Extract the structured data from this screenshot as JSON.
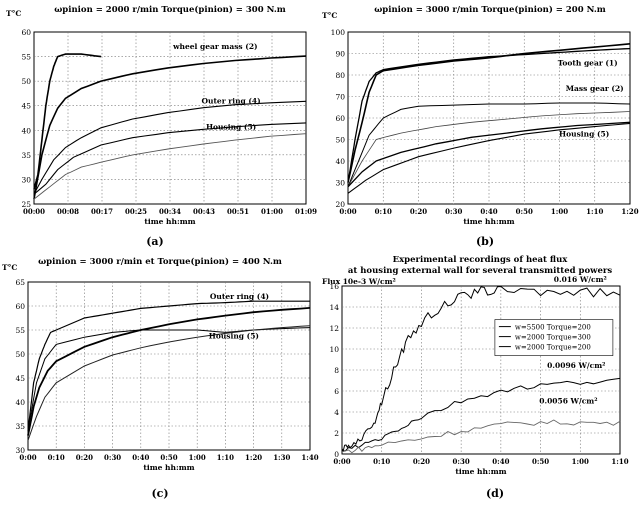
{
  "chart_data": [
    {
      "id": "a",
      "type": "line",
      "panel_label": "(a)",
      "title": "ωpinion = 2000 r/min  Torque(pinion) = 300 N.m",
      "ylabel": "T°C",
      "xlabel": "time hh:mm",
      "x_ticks": [
        "00:00",
        "00:08",
        "00:17",
        "00:25",
        "00:34",
        "00:43",
        "00:51",
        "01:00",
        "01:09"
      ],
      "x_range": [
        0,
        69
      ],
      "y_ticks": [
        25,
        30,
        35,
        40,
        45,
        50,
        55,
        60
      ],
      "ylim": [
        25,
        60
      ],
      "grid": true,
      "annotations": [
        {
          "text": "wheel gear mass (2)",
          "x": 46,
          "y": 56.5
        },
        {
          "text": "Outer ring (4)",
          "x": 50,
          "y": 45.5
        },
        {
          "text": "Housing (5)",
          "x": 50,
          "y": 40.2
        }
      ],
      "series": [
        {
          "points": [
            [
              0,
              28
            ],
            [
              1,
              31
            ],
            [
              2,
              38
            ],
            [
              3,
              45
            ],
            [
              4,
              50
            ],
            [
              5,
              53
            ],
            [
              6,
              55
            ],
            [
              8,
              55.5
            ],
            [
              12,
              55.5
            ],
            [
              17,
              55
            ]
          ],
          "color": "#000",
          "width": 1.6
        },
        {
          "points": [
            [
              0,
              26
            ],
            [
              2,
              35
            ],
            [
              4,
              41
            ],
            [
              6,
              44.5
            ],
            [
              8,
              46.5
            ],
            [
              12,
              48.5
            ],
            [
              17,
              50
            ],
            [
              25,
              51.5
            ],
            [
              34,
              52.7
            ],
            [
              43,
              53.6
            ],
            [
              51,
              54.2
            ],
            [
              60,
              54.7
            ],
            [
              69,
              55.1
            ]
          ],
          "color": "#000",
          "width": 1.6
        },
        {
          "points": [
            [
              0,
              27
            ],
            [
              2,
              30
            ],
            [
              5,
              34
            ],
            [
              8,
              36.5
            ],
            [
              12,
              38.5
            ],
            [
              17,
              40.5
            ],
            [
              25,
              42.3
            ],
            [
              34,
              43.6
            ],
            [
              43,
              44.6
            ],
            [
              51,
              45.2
            ],
            [
              60,
              45.6
            ],
            [
              69,
              45.9
            ]
          ],
          "color": "#000",
          "width": 1.1
        },
        {
          "points": [
            [
              0,
              27
            ],
            [
              3,
              29
            ],
            [
              6,
              32
            ],
            [
              10,
              34.5
            ],
            [
              17,
              37
            ],
            [
              25,
              38.5
            ],
            [
              34,
              39.5
            ],
            [
              43,
              40.2
            ],
            [
              51,
              40.7
            ],
            [
              60,
              41.2
            ],
            [
              69,
              41.5
            ]
          ],
          "color": "#000",
          "width": 1.1
        },
        {
          "points": [
            [
              0,
              26
            ],
            [
              4,
              28.5
            ],
            [
              8,
              31
            ],
            [
              12,
              32.5
            ],
            [
              17,
              33.5
            ],
            [
              25,
              35
            ],
            [
              34,
              36.2
            ],
            [
              43,
              37.2
            ],
            [
              51,
              38
            ],
            [
              60,
              38.8
            ],
            [
              69,
              39.3
            ]
          ],
          "color": "#555",
          "width": 0.9
        }
      ]
    },
    {
      "id": "b",
      "type": "line",
      "panel_label": "(b)",
      "title": "ωpinion = 3000 r/min  Torque(pinion) = 200 N.m",
      "ylabel": "T°C",
      "xlabel": "time hh:mm",
      "x_ticks": [
        "0:00",
        "0:10",
        "0:20",
        "0:30",
        "0:40",
        "0:50",
        "1:00",
        "1:10",
        "1:20"
      ],
      "x_range": [
        0,
        80
      ],
      "y_ticks": [
        20,
        30,
        40,
        50,
        60,
        70,
        80,
        90,
        100
      ],
      "ylim": [
        20,
        100
      ],
      "grid": true,
      "annotations": [
        {
          "text": "Tooth gear (1)",
          "x": 68,
          "y": 84.5
        },
        {
          "text": "Mass gear (2)",
          "x": 70,
          "y": 72.5
        },
        {
          "text": "Housing (5)",
          "x": 67,
          "y": 51.5
        }
      ],
      "series": [
        {
          "points": [
            [
              0,
              30
            ],
            [
              2,
              50
            ],
            [
              4,
              68
            ],
            [
              6,
              77
            ],
            [
              8,
              81
            ],
            [
              10,
              82.5
            ],
            [
              20,
              85
            ],
            [
              30,
              87
            ],
            [
              40,
              88.5
            ],
            [
              50,
              89.5
            ],
            [
              60,
              90.5
            ],
            [
              70,
              91.5
            ],
            [
              80,
              92.3
            ]
          ],
          "color": "#000",
          "width": 1.3
        },
        {
          "points": [
            [
              0,
              30
            ],
            [
              2,
              45
            ],
            [
              4,
              58
            ],
            [
              6,
              72
            ],
            [
              8,
              80
            ],
            [
              10,
              82
            ],
            [
              20,
              84.5
            ],
            [
              30,
              86.5
            ],
            [
              40,
              88
            ],
            [
              50,
              90
            ],
            [
              60,
              91.5
            ],
            [
              70,
              93
            ],
            [
              80,
              94.5
            ]
          ],
          "color": "#000",
          "width": 1.6
        },
        {
          "points": [
            [
              0,
              28
            ],
            [
              3,
              40
            ],
            [
              6,
              52
            ],
            [
              10,
              60
            ],
            [
              15,
              64
            ],
            [
              20,
              65.5
            ],
            [
              30,
              66
            ],
            [
              40,
              66.5
            ],
            [
              50,
              66.5
            ],
            [
              60,
              67
            ],
            [
              70,
              67
            ],
            [
              80,
              66.5
            ]
          ],
          "color": "#000",
          "width": 1.0
        },
        {
          "points": [
            [
              0,
              28
            ],
            [
              4,
              40
            ],
            [
              8,
              50
            ],
            [
              15,
              53
            ],
            [
              25,
              56
            ],
            [
              35,
              58
            ],
            [
              45,
              59.5
            ],
            [
              55,
              61
            ],
            [
              65,
              62
            ],
            [
              80,
              63
            ]
          ],
          "color": "#444",
          "width": 0.8
        },
        {
          "points": [
            [
              0,
              28
            ],
            [
              4,
              35
            ],
            [
              8,
              40
            ],
            [
              15,
              44
            ],
            [
              25,
              48
            ],
            [
              35,
              51
            ],
            [
              45,
              53
            ],
            [
              55,
              55
            ],
            [
              65,
              56.5
            ],
            [
              80,
              58
            ]
          ],
          "color": "#000",
          "width": 1.3
        },
        {
          "points": [
            [
              0,
              25
            ],
            [
              5,
              31
            ],
            [
              10,
              36
            ],
            [
              20,
              42
            ],
            [
              30,
              46
            ],
            [
              40,
              49.5
            ],
            [
              50,
              52.5
            ],
            [
              60,
              54.5
            ],
            [
              70,
              56
            ],
            [
              80,
              57.5
            ]
          ],
          "color": "#000",
          "width": 1.1
        }
      ]
    },
    {
      "id": "c",
      "type": "line",
      "panel_label": "(c)",
      "title": "ωpinion = 3000 r/min et Torque(pinion) = 400 N.m",
      "ylabel": "T°C",
      "xlabel": "time hh:mm",
      "x_ticks": [
        "0:00",
        "0:10",
        "0:20",
        "0:30",
        "0:40",
        "0:50",
        "1:00",
        "1:10",
        "1:20",
        "1:30",
        "1:40"
      ],
      "x_range": [
        0,
        100
      ],
      "y_ticks": [
        30,
        35,
        40,
        45,
        50,
        55,
        60,
        65
      ],
      "ylim": [
        30,
        65
      ],
      "grid": true,
      "annotations": [
        {
          "text": "Outer ring (4)",
          "x": 75,
          "y": 61.5
        },
        {
          "text": "Housing (5)",
          "x": 73,
          "y": 53.2
        }
      ],
      "series": [
        {
          "points": [
            [
              0,
              34
            ],
            [
              2,
              44
            ],
            [
              4,
              49
            ],
            [
              6,
              52
            ],
            [
              8,
              54.5
            ],
            [
              10,
              55
            ],
            [
              20,
              57.5
            ],
            [
              30,
              58.5
            ],
            [
              40,
              59.5
            ],
            [
              50,
              60
            ],
            [
              60,
              60.5
            ],
            [
              70,
              60.7
            ],
            [
              80,
              61
            ],
            [
              90,
              61
            ],
            [
              100,
              61
            ]
          ],
          "color": "#000",
          "width": 1.2
        },
        {
          "points": [
            [
              0,
              34
            ],
            [
              3,
              44
            ],
            [
              6,
              49
            ],
            [
              10,
              52
            ],
            [
              20,
              53.5
            ],
            [
              30,
              54.5
            ],
            [
              40,
              55
            ],
            [
              50,
              55
            ],
            [
              60,
              55
            ],
            [
              70,
              54.5
            ],
            [
              80,
              55
            ],
            [
              90,
              55.3
            ],
            [
              100,
              55.5
            ]
          ],
          "color": "#000",
          "width": 1.0
        },
        {
          "points": [
            [
              0,
              33
            ],
            [
              2,
              39
            ],
            [
              4,
              43
            ],
            [
              7,
              46.5
            ],
            [
              10,
              48.5
            ],
            [
              20,
              51.5
            ],
            [
              30,
              53.5
            ],
            [
              40,
              55
            ],
            [
              50,
              56.2
            ],
            [
              60,
              57.2
            ],
            [
              70,
              58
            ],
            [
              80,
              58.7
            ],
            [
              90,
              59.2
            ],
            [
              100,
              59.6
            ]
          ],
          "color": "#000",
          "width": 1.8
        },
        {
          "points": [
            [
              0,
              32
            ],
            [
              3,
              37
            ],
            [
              6,
              41
            ],
            [
              10,
              44
            ],
            [
              20,
              47.5
            ],
            [
              30,
              49.8
            ],
            [
              40,
              51.3
            ],
            [
              50,
              52.5
            ],
            [
              60,
              53.5
            ],
            [
              70,
              54.3
            ],
            [
              80,
              55
            ],
            [
              90,
              55.5
            ],
            [
              100,
              55.9
            ]
          ],
          "color": "#222",
          "width": 1.0
        }
      ]
    },
    {
      "id": "d",
      "type": "line",
      "panel_label": "(d)",
      "title": "Experimental recordings of heat flux",
      "subtitle": "at housing external wall for several transmitted powers",
      "ylabel": "Flux 10e-3 W/cm²",
      "xlabel": "time hh:mm",
      "x_ticks": [
        "0:00",
        "0:10",
        "0:20",
        "0:30",
        "0:40",
        "0:50",
        "1:00",
        "1:10"
      ],
      "x_range": [
        0,
        70
      ],
      "y_ticks": [
        0,
        2,
        4,
        6,
        8,
        10,
        12,
        14,
        16
      ],
      "ylim": [
        0,
        16
      ],
      "grid": true,
      "legend": {
        "placement": "center-right",
        "entries": [
          "w=5500 Torque=200",
          "w=2000 Torque=300",
          "w=2000 Torque=200"
        ]
      },
      "annotations": [
        {
          "text": "0.016 W/cm²",
          "x": 60,
          "y": 16.4
        },
        {
          "text": "0.0096 W/cm²",
          "x": 59,
          "y": 8.2
        },
        {
          "text": "0.0056 W/cm²",
          "x": 57,
          "y": 4.8
        }
      ],
      "series": [
        {
          "name": "w=5500 Torque=200",
          "points": [
            [
              0,
              0.5
            ],
            [
              2,
              0.8
            ],
            [
              5,
              1.5
            ],
            [
              8,
              3
            ],
            [
              10,
              5
            ],
            [
              13,
              8
            ],
            [
              16,
              10.5
            ],
            [
              20,
              12.5
            ],
            [
              25,
              14
            ],
            [
              30,
              15
            ],
            [
              35,
              15.5
            ],
            [
              40,
              15.6
            ],
            [
              50,
              15.5
            ],
            [
              60,
              15.4
            ],
            [
              70,
              15.3
            ]
          ],
          "color": "#000",
          "width": 1.0
        },
        {
          "name": "w=2000 Torque=300",
          "points": [
            [
              0,
              0.3
            ],
            [
              5,
              0.8
            ],
            [
              10,
              1.5
            ],
            [
              15,
              2.5
            ],
            [
              20,
              3.5
            ],
            [
              30,
              5
            ],
            [
              40,
              6
            ],
            [
              50,
              6.5
            ],
            [
              60,
              6.8
            ],
            [
              70,
              7
            ]
          ],
          "color": "#000",
          "width": 1.0
        },
        {
          "name": "w=2000 Torque=200",
          "points": [
            [
              0,
              0.2
            ],
            [
              5,
              0.5
            ],
            [
              10,
              0.9
            ],
            [
              20,
              1.5
            ],
            [
              30,
              2.2
            ],
            [
              40,
              2.8
            ],
            [
              50,
              3
            ],
            [
              60,
              3
            ],
            [
              70,
              2.9
            ]
          ],
          "color": "#666",
          "width": 0.9
        }
      ]
    }
  ]
}
